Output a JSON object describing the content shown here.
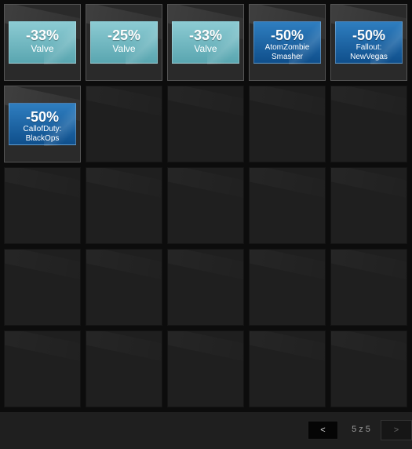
{
  "tiles": [
    {
      "discount": "-33%",
      "name": "Valve",
      "style": "teal"
    },
    {
      "discount": "-25%",
      "name": "Valve",
      "style": "teal"
    },
    {
      "discount": "-33%",
      "name": "Valve",
      "style": "teal"
    },
    {
      "discount": "-50%",
      "name": "AtomZombie Smasher",
      "name_line1": "AtomZombie",
      "name_line2": "Smasher",
      "style": "blue"
    },
    {
      "discount": "-50%",
      "name": "Fallout: NewVegas",
      "name_line1": "Fallout:",
      "name_line2": "NewVegas",
      "style": "blue"
    },
    {
      "discount": "-50%",
      "name": "CallofDuty: BlackOps",
      "name_line1": "CallofDuty:",
      "name_line2": "BlackOps",
      "style": "blue"
    }
  ],
  "pagination": {
    "prev_label": "<",
    "page_text": "5 z 5",
    "next_label": ">"
  },
  "colors": {
    "teal_badge": "#6fb8c1",
    "blue_badge": "#1d66a8",
    "background": "#0c0c0c",
    "cell": "#1f1f1f"
  }
}
